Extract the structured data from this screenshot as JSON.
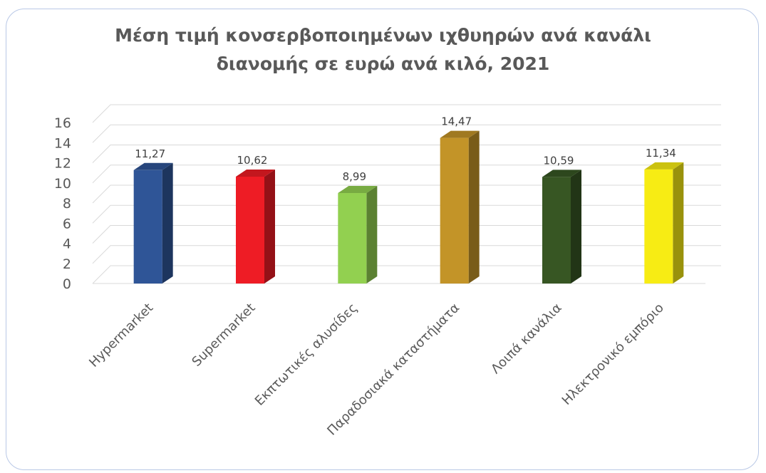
{
  "chart_data": {
    "type": "bar",
    "title_line1": "Μέση τιμή κονσερβοποιημένων ιχθυηρών ανά κανάλι",
    "title_line2": "διανομής σε ευρώ ανά κιλό, 2021",
    "categories": [
      "Hypermarket",
      "Supermarket",
      "Εκπτωτικές αλυσίδες",
      "Παραδοσιακά καταστήματα",
      "Λοιπά κανάλια",
      "Ηλεκτρονικό εμπόριο"
    ],
    "values": [
      11.27,
      10.62,
      8.99,
      14.47,
      10.59,
      11.34
    ],
    "value_labels": [
      "11,27",
      "10,62",
      "8,99",
      "14,47",
      "10,59",
      "11,34"
    ],
    "colors": [
      "#2f5597",
      "#ee1c25",
      "#92d050",
      "#c39428",
      "#375623",
      "#f7ec14"
    ],
    "yticks": [
      "0",
      "2",
      "4",
      "6",
      "8",
      "10",
      "12",
      "14",
      "16"
    ],
    "ylim": [
      0,
      16
    ],
    "grid": true,
    "style": "3d-column"
  }
}
